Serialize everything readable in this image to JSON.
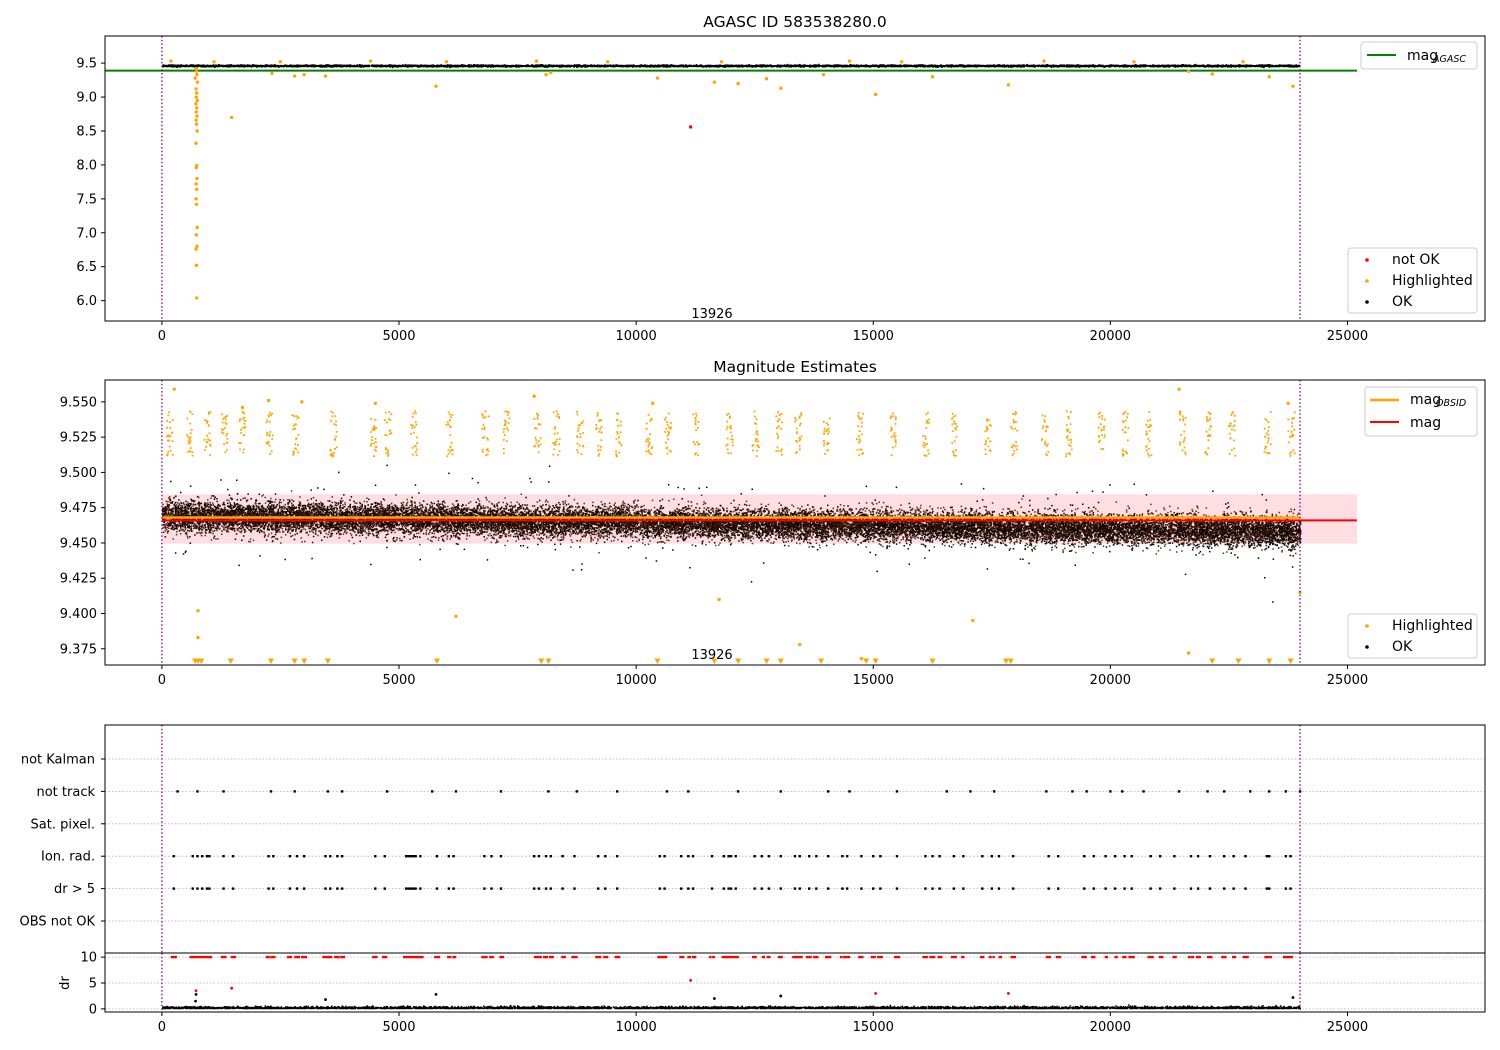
{
  "colors": {
    "ok": "#000000",
    "highlighted": "#ffa500",
    "not_ok": "#ff0000",
    "agasc_line": "#008000",
    "obsid_line": "#ffa500",
    "mag_line": "#ff0000",
    "band": "#ffb6c1",
    "obs_boundary": "#800080",
    "dark_cloud": "#3a1200"
  },
  "chart_data": [
    {
      "type": "scatter",
      "title": "AGASC ID 583538280.0",
      "xlabel": "",
      "ylabel": "",
      "xlim": [
        -1200,
        27900
      ],
      "ylim": [
        5.7,
        9.9
      ],
      "xticks": [
        0,
        5000,
        10000,
        15000,
        20000,
        25000
      ],
      "yticks": [
        6.0,
        6.5,
        7.0,
        7.5,
        8.0,
        8.5,
        9.0,
        9.5
      ],
      "ytick_labels": [
        "6.0",
        "6.5",
        "7.0",
        "7.5",
        "8.0",
        "8.5",
        "9.0",
        "9.5"
      ],
      "grid": false,
      "obs_boundaries": [
        0,
        24000
      ],
      "annotation": {
        "text": "13926",
        "x": 11600,
        "y": 5.8
      },
      "ok_band": {
        "x": [
          0,
          24000
        ],
        "y_center": 9.47,
        "spread": 0.025
      },
      "reference_lines": [
        {
          "name": "mag_AGASC",
          "y": 9.39,
          "x": [
            -1200,
            25200
          ],
          "color": "#008000"
        }
      ],
      "series": [
        {
          "name": "not OK",
          "color": "#ff0000",
          "points": [
            [
              11150,
              8.56
            ]
          ]
        },
        {
          "name": "Highlighted",
          "color": "#ffa500",
          "points": [
            [
              720,
              9.42
            ],
            [
              730,
              9.38
            ],
            [
              740,
              9.33
            ],
            [
              700,
              9.28
            ],
            [
              750,
              9.22
            ],
            [
              720,
              9.12
            ],
            [
              735,
              9.06
            ],
            [
              725,
              9.0
            ],
            [
              745,
              8.95
            ],
            [
              715,
              8.9
            ],
            [
              735,
              8.84
            ],
            [
              725,
              8.78
            ],
            [
              740,
              8.72
            ],
            [
              720,
              8.66
            ],
            [
              730,
              8.6
            ],
            [
              745,
              8.5
            ],
            [
              720,
              8.32
            ],
            [
              735,
              7.99
            ],
            [
              725,
              7.96
            ],
            [
              740,
              7.8
            ],
            [
              720,
              7.72
            ],
            [
              735,
              7.64
            ],
            [
              720,
              7.5
            ],
            [
              730,
              7.42
            ],
            [
              745,
              7.08
            ],
            [
              725,
              6.97
            ],
            [
              740,
              6.8
            ],
            [
              720,
              6.76
            ],
            [
              730,
              6.52
            ],
            [
              735,
              6.04
            ],
            [
              1470,
              8.7
            ],
            [
              2320,
              9.35
            ],
            [
              2800,
              9.31
            ],
            [
              3000,
              9.33
            ],
            [
              3450,
              9.31
            ],
            [
              5780,
              9.16
            ],
            [
              8200,
              9.36
            ],
            [
              8100,
              9.33
            ],
            [
              10450,
              9.28
            ],
            [
              11650,
              9.22
            ],
            [
              12150,
              9.2
            ],
            [
              12750,
              9.27
            ],
            [
              13050,
              9.13
            ],
            [
              13950,
              9.33
            ],
            [
              15050,
              9.04
            ],
            [
              16250,
              9.3
            ],
            [
              17850,
              9.18
            ],
            [
              21650,
              9.38
            ],
            [
              22150,
              9.34
            ],
            [
              23350,
              9.3
            ],
            [
              23850,
              9.16
            ],
            [
              190,
              9.53
            ],
            [
              1100,
              9.52
            ],
            [
              2500,
              9.52
            ],
            [
              4400,
              9.53
            ],
            [
              6000,
              9.52
            ],
            [
              7900,
              9.53
            ],
            [
              9400,
              9.52
            ],
            [
              11800,
              9.52
            ],
            [
              14500,
              9.53
            ],
            [
              15600,
              9.52
            ],
            [
              18600,
              9.53
            ],
            [
              20500,
              9.52
            ],
            [
              22800,
              9.52
            ]
          ]
        }
      ],
      "legend": {
        "placement": "upper right + lower right",
        "entries": [
          "mag_AGASC",
          "not OK",
          "Highlighted",
          "OK"
        ]
      }
    },
    {
      "type": "scatter",
      "title": "Magnitude Estimates",
      "xlabel": "",
      "ylabel": "",
      "xlim": [
        -1200,
        27900
      ],
      "ylim": [
        9.3635,
        9.5655
      ],
      "xticks": [
        0,
        5000,
        10000,
        15000,
        20000,
        25000
      ],
      "yticks": [
        9.375,
        9.4,
        9.425,
        9.45,
        9.475,
        9.5,
        9.525,
        9.55
      ],
      "ytick_labels": [
        "9.375",
        "9.400",
        "9.425",
        "9.450",
        "9.475",
        "9.500",
        "9.525",
        "9.550"
      ],
      "grid": false,
      "obs_boundaries": [
        0,
        24000
      ],
      "annotation": {
        "text": "13926",
        "x": 11600,
        "y": 9.3705
      },
      "band": {
        "x": [
          0,
          25200
        ],
        "y": [
          9.4495,
          9.4845
        ]
      },
      "ok_band": {
        "x": [
          0,
          24000
        ],
        "y_center": 9.465,
        "spread": 0.03
      },
      "reference_lines": [
        {
          "name": "mag_OBSID",
          "y": 9.468,
          "x": [
            0,
            24000
          ],
          "color": "#ffa500"
        },
        {
          "name": "mag",
          "y": 9.466,
          "x": [
            0,
            25200
          ],
          "color": "#ff0000"
        }
      ],
      "highlighted_clusters": [
        150,
        580,
        950,
        1300,
        1680,
        2250,
        2800,
        3600,
        4450,
        4750,
        5300,
        6050,
        6800,
        7250,
        7900,
        8300,
        8800,
        9200,
        9600,
        10250,
        10650,
        11250,
        11950,
        12500,
        13000,
        13400,
        14000,
        14700,
        15400,
        16100,
        16700,
        17400,
        17950,
        18600,
        19100,
        19800,
        20300,
        20800,
        21500,
        22050,
        22550,
        23300,
        23800
      ],
      "series": [
        {
          "name": "Highlighted",
          "color": "#ffa500",
          "points": [
            [
              260,
              9.559
            ],
            [
              1700,
              9.546
            ],
            [
              2250,
              9.551
            ],
            [
              2950,
              9.55
            ],
            [
              4500,
              9.549
            ],
            [
              7850,
              9.554
            ],
            [
              10350,
              9.549
            ],
            [
              21450,
              9.559
            ],
            [
              23750,
              9.549
            ],
            [
              760,
              9.402
            ],
            [
              760,
              9.383
            ],
            [
              6200,
              9.398
            ],
            [
              11750,
              9.41
            ],
            [
              17100,
              9.395
            ],
            [
              13450,
              9.378
            ],
            [
              14750,
              9.368
            ],
            [
              21650,
              9.372
            ],
            [
              24000,
              9.415
            ]
          ]
        },
        {
          "name": "Highlighted (below range)",
          "color": "#ffa500",
          "marker": "triangle-down",
          "points": [
            [
              700,
              9.366
            ],
            [
              760,
              9.366
            ],
            [
              830,
              9.366
            ],
            [
              1450,
              9.366
            ],
            [
              2300,
              9.366
            ],
            [
              2800,
              9.366
            ],
            [
              3000,
              9.366
            ],
            [
              3500,
              9.366
            ],
            [
              5800,
              9.366
            ],
            [
              8000,
              9.366
            ],
            [
              8150,
              9.366
            ],
            [
              10450,
              9.366
            ],
            [
              11650,
              9.366
            ],
            [
              12150,
              9.366
            ],
            [
              12750,
              9.366
            ],
            [
              13050,
              9.366
            ],
            [
              13900,
              9.366
            ],
            [
              14850,
              9.366
            ],
            [
              15050,
              9.366
            ],
            [
              16250,
              9.366
            ],
            [
              17800,
              9.366
            ],
            [
              17900,
              9.366
            ],
            [
              22150,
              9.366
            ],
            [
              22700,
              9.366
            ],
            [
              23350,
              9.366
            ],
            [
              23800,
              9.366
            ]
          ]
        }
      ],
      "legend": {
        "placement": "upper right + lower right",
        "entries": [
          "mag_OBSID",
          "mag",
          "Highlighted",
          "OK"
        ]
      }
    },
    {
      "type": "scatter",
      "title": "",
      "xlabel": "",
      "ylabel": "",
      "xlim": [
        -1200,
        27900
      ],
      "categories": [
        "OBS not OK",
        "dr > 5",
        "Ion. rad.",
        "Sat. pixel.",
        "not track",
        "not Kalman"
      ],
      "grid": true,
      "obs_boundaries": [
        0,
        24000
      ],
      "flag_points": {
        "not track": [
          330,
          750,
          1300,
          2300,
          2800,
          3500,
          3800,
          4750,
          5700,
          6200,
          7150,
          8150,
          8750,
          9600,
          10650,
          11100,
          12150,
          13050,
          14050,
          14500,
          15500,
          16550,
          17050,
          17550,
          18650,
          19200,
          19500,
          20000,
          20250,
          20700,
          21450,
          22050,
          22400,
          22950,
          23350,
          23700,
          24000
        ],
        "Ion. rad.": [
          250,
          650,
          750,
          850,
          950,
          1000,
          1300,
          1500,
          2250,
          2350,
          2700,
          2850,
          3000,
          3450,
          3550,
          3700,
          3800,
          4500,
          4700,
          5150,
          5200,
          5250,
          5300,
          5350,
          5450,
          5800,
          6050,
          6150,
          6800,
          6950,
          7150,
          7850,
          7950,
          8100,
          8200,
          8450,
          8700,
          9200,
          9350,
          9600,
          10500,
          10600,
          10950,
          11100,
          11200,
          11600,
          11850,
          11950,
          12000,
          12100,
          12500,
          12650,
          12800,
          13050,
          13350,
          13450,
          13650,
          13800,
          14050,
          14350,
          14450,
          14750,
          15000,
          15150,
          15500,
          16100,
          16250,
          16400,
          16700,
          16900,
          17300,
          17500,
          17650,
          17950,
          18700,
          18900,
          19450,
          19650,
          19900,
          20100,
          20300,
          20450,
          20850,
          21050,
          21350,
          21700,
          21850,
          22100,
          22400,
          22600,
          22850,
          23300,
          23350,
          23700,
          23800
        ],
        "dr > 5": [
          250,
          650,
          750,
          850,
          950,
          1000,
          1300,
          1500,
          2250,
          2350,
          2700,
          2850,
          3000,
          3450,
          3550,
          3700,
          3800,
          4500,
          4700,
          5150,
          5200,
          5250,
          5300,
          5350,
          5450,
          5800,
          6050,
          6150,
          6800,
          6950,
          7150,
          7850,
          7950,
          8100,
          8200,
          8450,
          8700,
          9200,
          9350,
          9600,
          10500,
          10600,
          10950,
          11100,
          11200,
          11600,
          11850,
          11950,
          12000,
          12100,
          12500,
          12650,
          12800,
          13050,
          13350,
          13450,
          13650,
          13800,
          14050,
          14350,
          14450,
          14750,
          15000,
          15150,
          15500,
          16100,
          16250,
          16400,
          16700,
          16900,
          17300,
          17500,
          17650,
          17950,
          18700,
          18900,
          19450,
          19650,
          19900,
          20100,
          20300,
          20450,
          20850,
          21050,
          21350,
          21700,
          21850,
          22100,
          22400,
          22600,
          22850,
          23300,
          23350,
          23700,
          23800
        ]
      }
    },
    {
      "type": "scatter",
      "title": "",
      "xlabel": "",
      "ylabel": "dr",
      "xlim": [
        -1200,
        27900
      ],
      "ylim": [
        -0.6,
        10.8
      ],
      "xticks": [
        0,
        5000,
        10000,
        15000,
        20000,
        25000
      ],
      "yticks": [
        0,
        5,
        10
      ],
      "ytick_labels": [
        "0",
        "5",
        "10"
      ],
      "grid": true,
      "obs_boundaries": [
        0,
        24000
      ],
      "threshold_y": 10,
      "series": [
        {
          "name": "dr above 5 (red)",
          "color": "#ff0000",
          "points": [
            [
              720,
              3.5
            ],
            [
              1470,
              4.0
            ],
            [
              11150,
              5.5
            ],
            [
              15050,
              3.0
            ],
            [
              17850,
              3.0
            ]
          ]
        },
        {
          "name": "dr small (black)",
          "color": "#000000",
          "points": [
            [
              720,
              2.8
            ],
            [
              5780,
              2.8
            ],
            [
              13050,
              2.5
            ],
            [
              11650,
              2.0
            ],
            [
              3450,
              1.8
            ],
            [
              23850,
              2.2
            ],
            [
              710,
              1.5
            ]
          ]
        }
      ]
    }
  ],
  "legends": {
    "top_line": [
      "mag",
      "AGASC"
    ],
    "top_points": [
      "not OK",
      "Highlighted",
      "OK"
    ],
    "mid_line": [
      [
        "mag",
        "OBSID"
      ],
      [
        "mag",
        ""
      ]
    ],
    "mid_points": [
      "Highlighted",
      "OK"
    ]
  }
}
